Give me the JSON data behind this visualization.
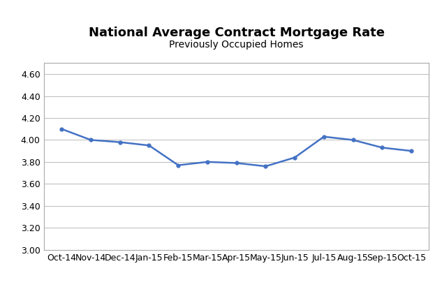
{
  "title": "National Average Contract Mortgage Rate",
  "subtitle": "Previously Occupied Homes",
  "x_labels": [
    "Oct-14",
    "Nov-14",
    "Dec-14",
    "Jan-15",
    "Feb-15",
    "Mar-15",
    "Apr-15",
    "May-15",
    "Jun-15",
    "Jul-15",
    "Aug-15",
    "Sep-15",
    "Oct-15"
  ],
  "y_values": [
    4.1,
    4.0,
    3.98,
    3.95,
    3.77,
    3.8,
    3.79,
    3.76,
    3.84,
    4.03,
    4.0,
    3.93,
    3.9
  ],
  "ylim": [
    3.0,
    4.7
  ],
  "yticks": [
    3.0,
    3.2,
    3.4,
    3.6,
    3.8,
    4.0,
    4.2,
    4.4,
    4.6
  ],
  "line_color": "#4472C4",
  "line_width": 1.8,
  "marker": "o",
  "marker_size": 3.5,
  "background_color": "#ffffff",
  "grid_color": "#bbbbbb",
  "title_fontsize": 13,
  "subtitle_fontsize": 10,
  "tick_fontsize": 9
}
